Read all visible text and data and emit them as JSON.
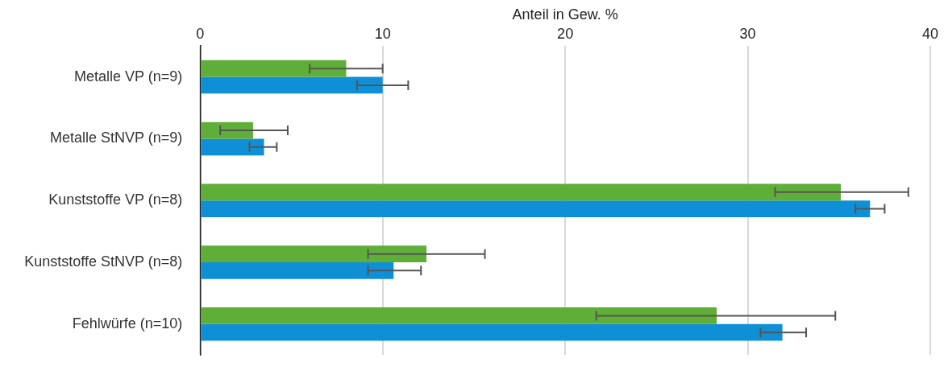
{
  "chart_data": {
    "type": "bar",
    "orientation": "horizontal",
    "xlabel": "Anteil in Gew. %",
    "categories": [
      "Metalle VP (n=9)",
      "Metalle StNVP (n=9)",
      "Kunststoffe VP (n=8)",
      "Kunststoffe StNVP (n=8)",
      "Fehlwürfe (n=10)"
    ],
    "series": [
      {
        "color": "#5fae37",
        "values": [
          8.0,
          2.9,
          35.1,
          12.4,
          28.3
        ],
        "errors": [
          [
            6.0,
            10.0
          ],
          [
            1.1,
            4.8
          ],
          [
            31.5,
            38.8
          ],
          [
            9.2,
            15.6
          ],
          [
            21.7,
            34.8
          ]
        ]
      },
      {
        "color": "#0f8fd6",
        "values": [
          10.0,
          3.5,
          36.7,
          10.6,
          31.9
        ],
        "errors": [
          [
            8.6,
            11.4
          ],
          [
            2.7,
            4.2
          ],
          [
            35.9,
            37.5
          ],
          [
            9.2,
            12.1
          ],
          [
            30.7,
            33.2
          ]
        ]
      }
    ],
    "xlim": [
      0,
      40
    ],
    "xticks": [
      0,
      10,
      20,
      30,
      40
    ],
    "grid": "x",
    "legend": false
  }
}
